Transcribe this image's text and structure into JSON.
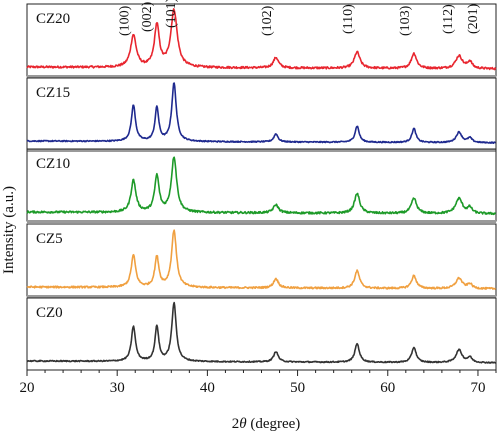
{
  "chart_data": {
    "type": "line",
    "xlabel_italic": "θ",
    "xlabel_prefix": "2",
    "xlabel_suffix": " (degree)",
    "ylabel": "Intensity (a.u.)",
    "xlim": [
      20,
      72
    ],
    "xticks": [
      20,
      30,
      40,
      50,
      60,
      70
    ],
    "grid": false,
    "legend": "none",
    "peaks": [
      {
        "label": "(100)",
        "x": 31.8
      },
      {
        "label": "(002)",
        "x": 34.4
      },
      {
        "label": "(101)",
        "x": 36.3
      },
      {
        "label": "(102)",
        "x": 47.6
      },
      {
        "label": "(110)",
        "x": 56.6
      },
      {
        "label": "(103)",
        "x": 62.9
      },
      {
        "label": "(112)",
        "x": 67.9
      },
      {
        "label": "(201)",
        "x": 69.1
      }
    ],
    "series": [
      {
        "name": "CZ20",
        "color": "#e8262f",
        "peak_heights": [
          0.55,
          0.72,
          0.98,
          0.18,
          0.28,
          0.26,
          0.22,
          0.12
        ],
        "peak_widths": [
          0.75,
          0.65,
          0.85,
          0.7,
          0.75,
          0.7,
          0.9,
          0.6
        ],
        "noise": 0.035
      },
      {
        "name": "CZ15",
        "color": "#1f2a8f",
        "peak_heights": [
          0.62,
          0.58,
          1.0,
          0.14,
          0.28,
          0.24,
          0.18,
          0.08
        ],
        "peak_widths": [
          0.55,
          0.5,
          0.6,
          0.55,
          0.55,
          0.55,
          0.75,
          0.6
        ],
        "noise": 0.02
      },
      {
        "name": "CZ10",
        "color": "#1d9a28",
        "peak_heights": [
          0.55,
          0.62,
          0.95,
          0.14,
          0.34,
          0.26,
          0.26,
          0.1
        ],
        "peak_widths": [
          0.65,
          0.6,
          0.7,
          0.7,
          0.7,
          0.7,
          0.9,
          0.6
        ],
        "noise": 0.035
      },
      {
        "name": "CZ5",
        "color": "#f0a040",
        "peak_heights": [
          0.55,
          0.52,
          0.98,
          0.16,
          0.3,
          0.22,
          0.18,
          0.08
        ],
        "peak_widths": [
          0.6,
          0.55,
          0.65,
          0.65,
          0.65,
          0.65,
          0.85,
          0.6
        ],
        "noise": 0.03
      },
      {
        "name": "CZ0",
        "color": "#333333",
        "peak_heights": [
          0.6,
          0.6,
          1.0,
          0.18,
          0.32,
          0.26,
          0.22,
          0.09
        ],
        "peak_widths": [
          0.55,
          0.5,
          0.6,
          0.6,
          0.6,
          0.6,
          0.8,
          0.6
        ],
        "noise": 0.02
      }
    ]
  }
}
